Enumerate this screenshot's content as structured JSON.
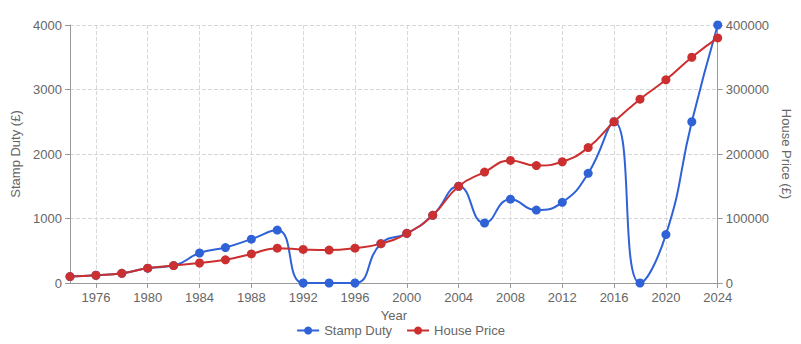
{
  "chart_data": {
    "type": "line",
    "x_label": "Year",
    "y_label": "Stamp Duty (£)",
    "y2_label": "House Price (£)",
    "x": [
      1974,
      1976,
      1978,
      1980,
      1982,
      1984,
      1986,
      1988,
      1990,
      1992,
      1994,
      1996,
      1998,
      2000,
      2002,
      2004,
      2006,
      2008,
      2010,
      2012,
      2014,
      2016,
      2018,
      2020,
      2022,
      2024
    ],
    "xlim": [
      1974,
      2024
    ],
    "xticks": [
      1976,
      1980,
      1984,
      1988,
      1992,
      1996,
      2000,
      2004,
      2008,
      2012,
      2016,
      2020,
      2024
    ],
    "ylim": [
      0,
      4000
    ],
    "yticks": [
      0,
      1000,
      2000,
      3000,
      4000
    ],
    "y2lim": [
      0,
      400000
    ],
    "y2ticks": [
      0,
      100000,
      200000,
      300000,
      400000
    ],
    "grid": true,
    "legend": "bottom",
    "series": [
      {
        "name": "Stamp Duty",
        "color": "#2f62d6",
        "marker": "circle",
        "line_style": "smooth",
        "values": [
          100,
          120,
          150,
          230,
          270,
          465,
          550,
          680,
          820,
          0,
          0,
          0,
          610,
          770,
          1050,
          1500,
          930,
          1300,
          1130,
          1250,
          1700,
          2500,
          0,
          750,
          2500,
          4000
        ]
      },
      {
        "name": "House Price",
        "color": "#cc2f2f",
        "marker": "circle",
        "line_style": "smooth",
        "axis": "y2",
        "values": [
          10000,
          12000,
          15000,
          23000,
          27000,
          31000,
          36000,
          45000,
          54000,
          52000,
          51000,
          54000,
          61000,
          77000,
          105000,
          150000,
          172000,
          190000,
          182000,
          188000,
          210000,
          250000,
          285000,
          315000,
          350000,
          380000
        ]
      }
    ]
  }
}
